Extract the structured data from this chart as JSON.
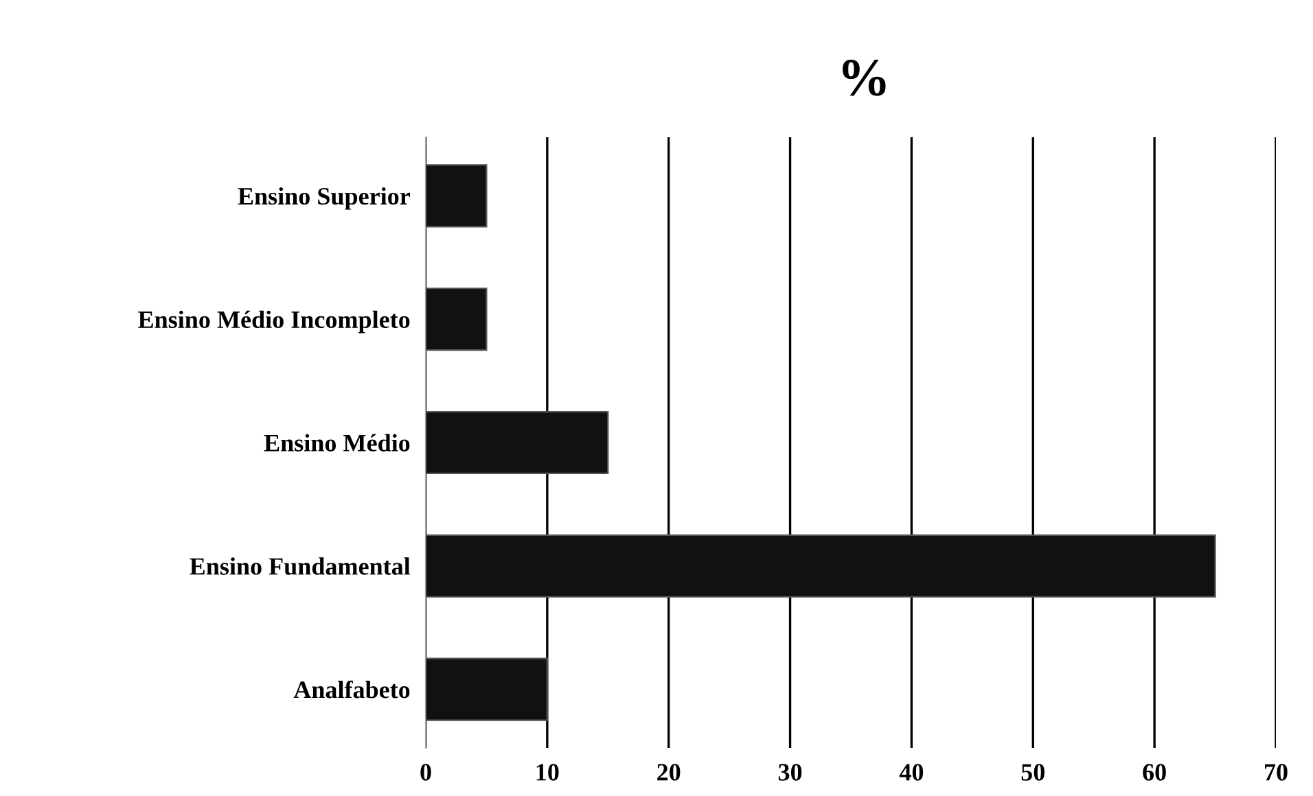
{
  "chart_data": {
    "type": "bar",
    "orientation": "horizontal",
    "title": "%",
    "categories": [
      "Ensino Superior",
      "Ensino Médio Incompleto",
      "Ensino Médio",
      "Ensino Fundamental",
      "Analfabeto"
    ],
    "values": [
      5,
      5,
      15,
      65,
      10
    ],
    "color": "#111111",
    "xlim": [
      0,
      70
    ],
    "xticks": [
      0,
      10,
      20,
      30,
      40,
      50,
      60,
      70
    ],
    "grid": "x",
    "legend": false
  }
}
